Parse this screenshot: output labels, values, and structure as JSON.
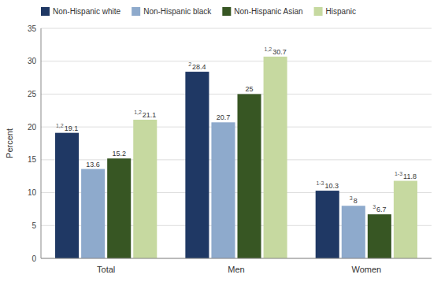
{
  "chart_data": {
    "type": "bar",
    "categories": [
      "Total",
      "Men",
      "Women"
    ],
    "series": [
      {
        "name": "Non-Hispanic white",
        "color": "#1f3864",
        "values": [
          19.1,
          28.4,
          10.3
        ],
        "annotations": [
          "1,2",
          "2",
          "1-3"
        ]
      },
      {
        "name": "Non-Hispanic black",
        "color": "#8eaacc",
        "values": [
          13.6,
          20.7,
          8.0
        ],
        "annotations": [
          null,
          null,
          "3"
        ]
      },
      {
        "name": "Non-Hispanic Asian",
        "color": "#375623",
        "values": [
          15.2,
          25.0,
          6.7
        ],
        "annotations": [
          null,
          null,
          "3"
        ]
      },
      {
        "name": "Hispanic",
        "color": "#c6d9a0",
        "values": [
          21.1,
          30.7,
          11.8
        ],
        "annotations": [
          "1,2",
          "1,2",
          "1-3"
        ]
      }
    ],
    "ylabel": "Percent",
    "ylim": [
      0,
      35
    ],
    "yticks": [
      0,
      5,
      10,
      15,
      20,
      25,
      30,
      35
    ],
    "grid": true,
    "legend": "upper left",
    "data_labels": true
  }
}
